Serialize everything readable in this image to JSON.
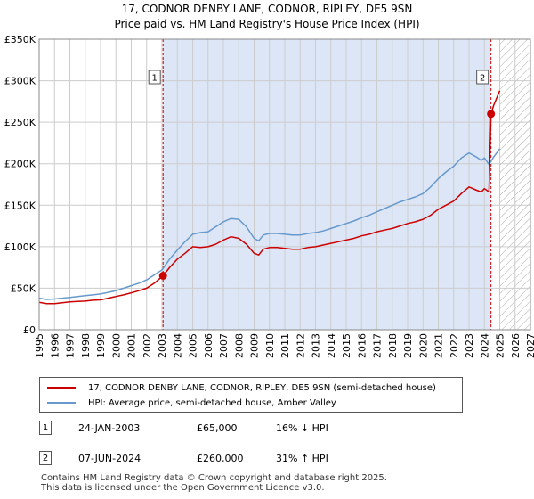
{
  "title_line1": "17, CODNOR DENBY LANE, CODNOR, RIPLEY, DE5 9SN",
  "title_line2": "Price paid vs. HM Land Registry's House Price Index (HPI)",
  "colors": {
    "property": "#cc0000",
    "hpi": "#6699cc",
    "shade": "#dde6f7",
    "grid": "#cccccc",
    "hatch": "#aaaaaa",
    "marker_line": "#cc0000"
  },
  "chart_data": {
    "type": "line",
    "title": "17, CODNOR DENBY LANE, CODNOR, RIPLEY, DE5 9SN",
    "subtitle": "Price paid vs. HM Land Registry's House Price Index (HPI)",
    "xlabel": "",
    "ylabel": "",
    "xlim": [
      1995,
      2027
    ],
    "ylim": [
      0,
      350000
    ],
    "x_ticks": [
      "1995",
      "1996",
      "1997",
      "1998",
      "1999",
      "2000",
      "2001",
      "2002",
      "2003",
      "2004",
      "2005",
      "2006",
      "2007",
      "2008",
      "2009",
      "2010",
      "2011",
      "2012",
      "2013",
      "2014",
      "2015",
      "2016",
      "2017",
      "2018",
      "2019",
      "2020",
      "2021",
      "2022",
      "2023",
      "2024",
      "2025",
      "2026",
      "2027"
    ],
    "y_ticks": [
      {
        "value": 0,
        "label": "£0"
      },
      {
        "value": 50000,
        "label": "£50K"
      },
      {
        "value": 100000,
        "label": "£100K"
      },
      {
        "value": 150000,
        "label": "£150K"
      },
      {
        "value": 200000,
        "label": "£200K"
      },
      {
        "value": 250000,
        "label": "£250K"
      },
      {
        "value": 300000,
        "label": "£300K"
      },
      {
        "value": 350000,
        "label": "£350K"
      }
    ],
    "shaded_range": [
      2003.07,
      2024.43
    ],
    "forecast_from": 2025.0,
    "series": [
      {
        "name": "17, CODNOR DENBY LANE, CODNOR, RIPLEY, DE5 9SN (semi-detached house)",
        "color": "#cc0000",
        "x": [
          1995.0,
          1995.5,
          1996.0,
          1996.5,
          1997.0,
          1997.5,
          1998.0,
          1998.5,
          1999.0,
          1999.5,
          2000.0,
          2000.5,
          2001.0,
          2001.5,
          2002.0,
          2002.5,
          2003.07,
          2003.5,
          2004.0,
          2004.5,
          2005.0,
          2005.5,
          2006.0,
          2006.5,
          2007.0,
          2007.5,
          2008.0,
          2008.5,
          2009.0,
          2009.3,
          2009.6,
          2010.0,
          2010.5,
          2011.0,
          2011.5,
          2012.0,
          2012.5,
          2013.0,
          2013.5,
          2014.0,
          2014.5,
          2015.0,
          2015.5,
          2016.0,
          2016.5,
          2017.0,
          2017.5,
          2018.0,
          2018.5,
          2019.0,
          2019.5,
          2020.0,
          2020.5,
          2021.0,
          2021.5,
          2022.0,
          2022.5,
          2023.0,
          2023.5,
          2023.8,
          2024.0,
          2024.3,
          2024.43,
          2024.6,
          2025.0
        ],
        "values": [
          33000,
          31500,
          31500,
          32500,
          33500,
          34000,
          34500,
          35500,
          36000,
          38000,
          40000,
          42000,
          44500,
          47000,
          50000,
          56000,
          65000,
          75000,
          85000,
          92000,
          100000,
          99000,
          100000,
          103000,
          108000,
          112000,
          110000,
          103000,
          92000,
          90000,
          97000,
          99000,
          99000,
          98000,
          97000,
          97000,
          99000,
          100000,
          102000,
          104000,
          106000,
          108000,
          110000,
          113000,
          115000,
          118000,
          120000,
          122000,
          125000,
          128000,
          130000,
          133000,
          138000,
          145000,
          150000,
          155000,
          164000,
          172000,
          168000,
          166000,
          170000,
          166000,
          260000,
          270000,
          288000
        ]
      },
      {
        "name": "HPI: Average price, semi-detached house, Amber Valley",
        "color": "#6699cc",
        "x": [
          1995.0,
          1995.5,
          1996.0,
          1996.5,
          1997.0,
          1997.5,
          1998.0,
          1998.5,
          1999.0,
          1999.5,
          2000.0,
          2000.5,
          2001.0,
          2001.5,
          2002.0,
          2002.5,
          2003.0,
          2003.5,
          2004.0,
          2004.5,
          2005.0,
          2005.5,
          2006.0,
          2006.5,
          2007.0,
          2007.5,
          2008.0,
          2008.5,
          2009.0,
          2009.3,
          2009.6,
          2010.0,
          2010.5,
          2011.0,
          2011.5,
          2012.0,
          2012.5,
          2013.0,
          2013.5,
          2014.0,
          2014.5,
          2015.0,
          2015.5,
          2016.0,
          2016.5,
          2017.0,
          2017.5,
          2018.0,
          2018.5,
          2019.0,
          2019.5,
          2020.0,
          2020.5,
          2021.0,
          2021.5,
          2022.0,
          2022.5,
          2023.0,
          2023.5,
          2023.8,
          2024.0,
          2024.3,
          2024.6,
          2025.0
        ],
        "values": [
          38000,
          36500,
          37000,
          38000,
          39000,
          40000,
          41000,
          42000,
          43000,
          45000,
          47000,
          50000,
          53000,
          56000,
          60000,
          66000,
          72000,
          85000,
          96000,
          106000,
          115000,
          117000,
          118000,
          124000,
          130000,
          134000,
          133000,
          124000,
          110000,
          107000,
          114000,
          116000,
          116000,
          115000,
          114000,
          114000,
          116000,
          117000,
          119000,
          122000,
          125000,
          128000,
          131000,
          135000,
          138000,
          142000,
          146000,
          150000,
          154000,
          157000,
          160000,
          164000,
          172000,
          182000,
          190000,
          197000,
          207000,
          213000,
          208000,
          204000,
          207000,
          199000,
          208000,
          218000
        ]
      }
    ],
    "annotations": [
      {
        "label": "1",
        "x": 2003.07,
        "value": 65000
      },
      {
        "label": "2",
        "x": 2024.43,
        "value": 260000
      }
    ]
  },
  "legend": {
    "property_label": "17, CODNOR DENBY LANE, CODNOR, RIPLEY, DE5 9SN (semi-detached house)",
    "hpi_label": "HPI: Average price, semi-detached house, Amber Valley"
  },
  "sales": [
    {
      "marker": "1",
      "date": "24-JAN-2003",
      "price": "£65,000",
      "hpi_change": "16% ↓ HPI"
    },
    {
      "marker": "2",
      "date": "07-JUN-2024",
      "price": "£260,000",
      "hpi_change": "31% ↑ HPI"
    }
  ],
  "footer_line1": "Contains HM Land Registry data © Crown copyright and database right 2025.",
  "footer_line2": "This data is licensed under the Open Government Licence v3.0."
}
